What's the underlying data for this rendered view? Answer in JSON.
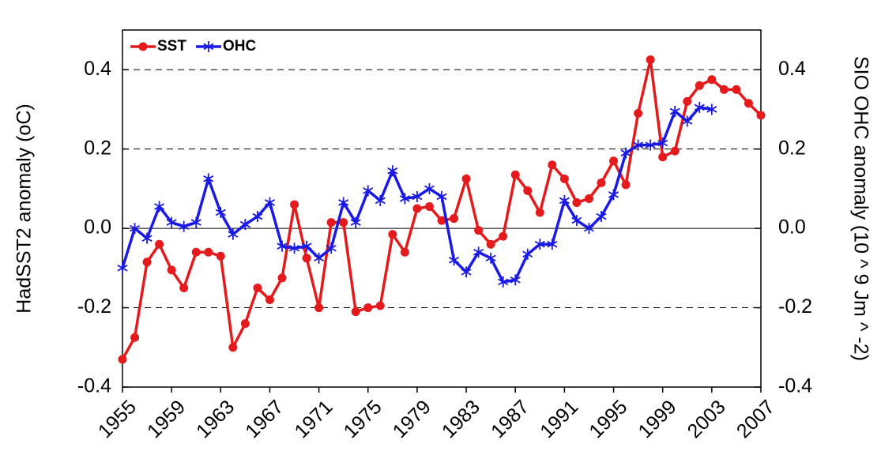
{
  "chart_data": {
    "type": "line",
    "y_label": "HadSST2 anomaly (oC)",
    "y2_label": "SIO OHC anomaly (10 ^ 9 Jm ^ -2)",
    "x": [
      1955,
      1956,
      1957,
      1958,
      1959,
      1960,
      1961,
      1962,
      1963,
      1964,
      1965,
      1966,
      1967,
      1968,
      1969,
      1970,
      1971,
      1972,
      1973,
      1974,
      1975,
      1976,
      1977,
      1978,
      1979,
      1980,
      1981,
      1982,
      1983,
      1984,
      1985,
      1986,
      1987,
      1988,
      1989,
      1990,
      1991,
      1992,
      1993,
      1994,
      1995,
      1996,
      1997,
      1998,
      1999,
      2000,
      2001,
      2002,
      2003,
      2004,
      2005,
      2006,
      2007
    ],
    "xlim": [
      1955,
      2007
    ],
    "xticks": [
      1955,
      1959,
      1963,
      1967,
      1971,
      1975,
      1979,
      1983,
      1987,
      1991,
      1995,
      1999,
      2003,
      2007
    ],
    "ylim": [
      -0.4,
      0.5
    ],
    "yticks": [
      -0.4,
      -0.2,
      {
        "value": 0,
        "label": "0.0"
      },
      0.2,
      0.4
    ],
    "y2lim": [
      -0.4,
      0.5
    ],
    "y2ticks": [
      -0.4,
      -0.2,
      {
        "value": 0,
        "label": "0.0"
      },
      0.2,
      0.4
    ],
    "grid": true,
    "legend": "upper left",
    "series": [
      {
        "name": "SST",
        "color": "#e41a1c",
        "marker": "circle",
        "values": [
          -0.33,
          -0.275,
          -0.085,
          -0.04,
          -0.105,
          -0.15,
          -0.06,
          -0.06,
          -0.07,
          -0.3,
          -0.24,
          -0.15,
          -0.18,
          -0.125,
          0.06,
          -0.075,
          -0.2,
          0.015,
          0.015,
          -0.21,
          -0.2,
          -0.195,
          -0.015,
          -0.06,
          0.05,
          0.055,
          0.02,
          0.025,
          0.125,
          -0.005,
          -0.04,
          -0.02,
          0.135,
          0.095,
          0.04,
          0.16,
          0.125,
          0.065,
          0.075,
          0.115,
          0.17,
          0.11,
          0.29,
          0.425,
          0.18,
          0.195,
          0.32,
          0.36,
          0.375,
          0.35,
          0.35,
          0.315,
          0.285
        ]
      },
      {
        "name": "OHC",
        "color": "#1a1ae4",
        "marker": "star",
        "axis": "y2",
        "values": [
          -0.1,
          0.0,
          -0.025,
          0.055,
          0.015,
          0.005,
          0.015,
          0.125,
          0.04,
          -0.015,
          0.01,
          0.03,
          0.065,
          -0.045,
          -0.05,
          -0.045,
          -0.075,
          -0.05,
          0.065,
          0.015,
          0.095,
          0.07,
          0.145,
          0.075,
          0.08,
          0.1,
          0.08,
          -0.08,
          -0.11,
          -0.06,
          -0.075,
          -0.135,
          -0.13,
          -0.065,
          -0.04,
          -0.04,
          0.07,
          0.02,
          0.0,
          0.03,
          0.085,
          0.19,
          0.21,
          0.21,
          0.215,
          0.295,
          0.27,
          0.305,
          0.3,
          null,
          null,
          null,
          null
        ]
      }
    ]
  }
}
